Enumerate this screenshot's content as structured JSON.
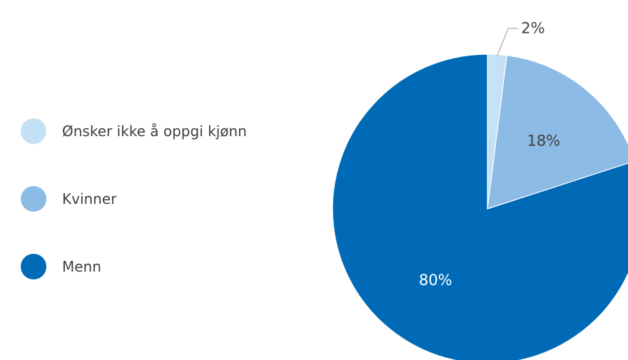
{
  "chart_data": {
    "type": "pie",
    "title": "",
    "categories": [
      "Ønsker ikke å oppgi kjønn",
      "Kvinner",
      "Menn"
    ],
    "values": [
      2,
      18,
      80
    ],
    "data_labels": [
      "2%",
      "18%",
      "80%"
    ],
    "colors": [
      "#c5e1f5",
      "#8cbbe6",
      "#006ab7"
    ],
    "label_colors": [
      "#404040",
      "#404040",
      "#ffffff"
    ],
    "legend_position": "left",
    "start_angle_deg": 0,
    "direction": "clockwise"
  }
}
